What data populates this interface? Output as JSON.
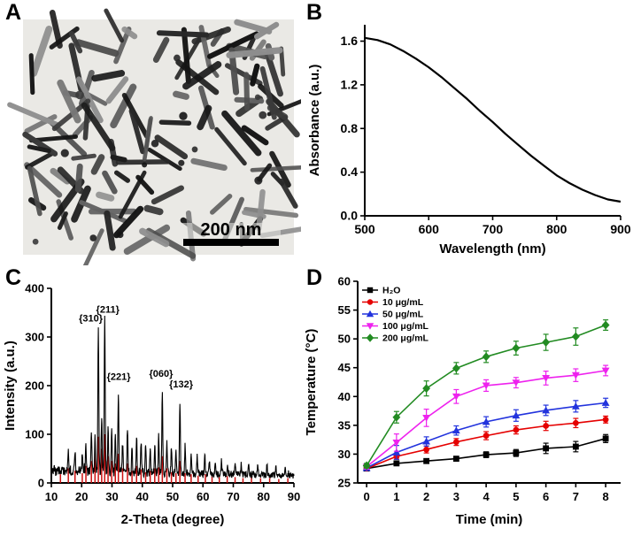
{
  "panels": {
    "A": {
      "label": "A",
      "scale_bar": "200 nm"
    },
    "B": {
      "label": "B"
    },
    "C": {
      "label": "C"
    },
    "D": {
      "label": "D"
    }
  },
  "tem": {
    "background": "#eae9e5",
    "rod_count": 120,
    "dot_count": 14,
    "rod_palette": [
      "#141414",
      "#1d1d1d",
      "#292929",
      "#3a3a3a",
      "#4e4e4e",
      "#626262",
      "#787878",
      "#8e8e8e"
    ],
    "scale_bar_color": "#000000"
  },
  "chart_data": [
    {
      "id": "absorbance",
      "type": "line",
      "title": "",
      "xlabel": "Wavelength (nm)",
      "ylabel": "Absorbance (a.u.)",
      "xlim": [
        500,
        900
      ],
      "ylim": [
        0,
        1.75
      ],
      "xticks": [
        500,
        600,
        700,
        800,
        900
      ],
      "yticks": [
        0.0,
        0.4,
        0.8,
        1.2,
        1.6
      ],
      "yticklabels": [
        "0.0",
        "0.4",
        "0.8",
        "1.2",
        "1.6"
      ],
      "color": "#000000",
      "x": [
        500,
        520,
        540,
        560,
        580,
        600,
        620,
        640,
        660,
        680,
        700,
        720,
        740,
        760,
        780,
        800,
        820,
        840,
        860,
        880,
        900
      ],
      "y": [
        1.63,
        1.61,
        1.57,
        1.51,
        1.44,
        1.36,
        1.27,
        1.17,
        1.07,
        0.96,
        0.86,
        0.75,
        0.65,
        0.55,
        0.46,
        0.37,
        0.3,
        0.24,
        0.19,
        0.15,
        0.13
      ]
    },
    {
      "id": "xrd",
      "type": "line",
      "title": "",
      "xlabel": "2-Theta (degree)",
      "ylabel": "Intensity (a.u.)",
      "xlim": [
        10,
        90
      ],
      "ylim": [
        0,
        400
      ],
      "xticks": [
        10,
        20,
        30,
        40,
        50,
        60,
        70,
        80,
        90
      ],
      "yticks": [
        0,
        100,
        200,
        300,
        400
      ],
      "trace_color": "#000000",
      "stick_color": "#cc1111",
      "noise": {
        "baseline_start": 26,
        "baseline_end": 15,
        "amp_start": 11,
        "amp_end": 6
      },
      "peaks": [
        [
          15.6,
          35,
          0.2
        ],
        [
          17.8,
          45,
          0.2
        ],
        [
          20.2,
          40,
          0.2
        ],
        [
          21.4,
          55,
          0.2
        ],
        [
          23.2,
          85,
          0.2
        ],
        [
          24.4,
          75,
          0.2
        ],
        [
          25.5,
          300,
          0.22
        ],
        [
          26.6,
          115,
          0.2
        ],
        [
          27.6,
          320,
          0.22
        ],
        [
          28.7,
          95,
          0.2
        ],
        [
          29.9,
          85,
          0.2
        ],
        [
          31.1,
          70,
          0.2
        ],
        [
          32.1,
          160,
          0.22
        ],
        [
          33.5,
          60,
          0.2
        ],
        [
          35.1,
          85,
          0.2
        ],
        [
          36.6,
          55,
          0.2
        ],
        [
          38.1,
          75,
          0.2
        ],
        [
          39.6,
          65,
          0.2
        ],
        [
          41.1,
          55,
          0.2
        ],
        [
          42.6,
          50,
          0.2
        ],
        [
          44.1,
          60,
          0.2
        ],
        [
          45.4,
          75,
          0.2
        ],
        [
          46.6,
          165,
          0.22
        ],
        [
          48.1,
          60,
          0.2
        ],
        [
          49.6,
          55,
          0.2
        ],
        [
          51.1,
          50,
          0.2
        ],
        [
          52.4,
          145,
          0.22
        ],
        [
          54.1,
          55,
          0.2
        ],
        [
          56.1,
          40,
          0.2
        ],
        [
          58.1,
          35,
          0.2
        ],
        [
          60.6,
          40,
          0.2
        ],
        [
          62.1,
          30,
          0.2
        ],
        [
          64.1,
          28,
          0.2
        ],
        [
          66.1,
          32,
          0.2
        ],
        [
          68.1,
          26,
          0.2
        ],
        [
          70.6,
          30,
          0.2
        ],
        [
          72.6,
          22,
          0.2
        ],
        [
          75.1,
          26,
          0.2
        ],
        [
          78.1,
          22,
          0.2
        ],
        [
          81.1,
          20,
          0.2
        ],
        [
          84.1,
          18,
          0.2
        ],
        [
          87.1,
          20,
          0.2
        ]
      ],
      "ref_sticks": [
        [
          13.0,
          18
        ],
        [
          15.6,
          30
        ],
        [
          17.8,
          25
        ],
        [
          20.2,
          20
        ],
        [
          21.4,
          35
        ],
        [
          23.2,
          45
        ],
        [
          24.4,
          60
        ],
        [
          25.5,
          95
        ],
        [
          26.6,
          70
        ],
        [
          27.6,
          100
        ],
        [
          28.7,
          55
        ],
        [
          29.9,
          45
        ],
        [
          31.1,
          40
        ],
        [
          32.1,
          60
        ],
        [
          33.5,
          30
        ],
        [
          35.1,
          40
        ],
        [
          36.6,
          25
        ],
        [
          38.1,
          35
        ],
        [
          39.6,
          28
        ],
        [
          41.1,
          22
        ],
        [
          42.6,
          25
        ],
        [
          44.1,
          30
        ],
        [
          45.4,
          32
        ],
        [
          46.6,
          55
        ],
        [
          48.1,
          30
        ],
        [
          49.6,
          22
        ],
        [
          51.1,
          20
        ],
        [
          52.4,
          45
        ],
        [
          54.1,
          20
        ],
        [
          56.1,
          18
        ],
        [
          58.4,
          15
        ],
        [
          60.8,
          18
        ],
        [
          63.0,
          14
        ],
        [
          65.4,
          12
        ],
        [
          68.0,
          14
        ],
        [
          70.6,
          12
        ],
        [
          73.2,
          10
        ],
        [
          76.0,
          12
        ],
        [
          79.0,
          10
        ],
        [
          82.0,
          10
        ],
        [
          85.0,
          8
        ],
        [
          88.0,
          10
        ]
      ],
      "annotations": [
        {
          "text": "{310}",
          "x": 23.0,
          "y": 332
        },
        {
          "text": "{211}",
          "x": 28.6,
          "y": 350
        },
        {
          "text": "{221}",
          "x": 32.2,
          "y": 212
        },
        {
          "text": "{060}",
          "x": 46.2,
          "y": 218
        },
        {
          "text": "{132}",
          "x": 52.8,
          "y": 196
        }
      ]
    },
    {
      "id": "heating",
      "type": "line",
      "title": "",
      "xlabel": "Time (min)",
      "ylabel": "Temperature (°C)",
      "xlim": [
        -0.3,
        8.5
      ],
      "ylim": [
        25,
        60
      ],
      "xticks": [
        0,
        1,
        2,
        3,
        4,
        5,
        6,
        7,
        8
      ],
      "yticks": [
        25,
        30,
        35,
        40,
        45,
        50,
        55,
        60
      ],
      "legend_position": "top-left",
      "x": [
        0,
        1,
        2,
        3,
        4,
        5,
        6,
        7,
        8
      ],
      "series": [
        {
          "name": "H2O",
          "display": "H₂O",
          "color": "#000000",
          "marker": "square",
          "values": [
            27.5,
            28.4,
            28.8,
            29.2,
            29.9,
            30.2,
            31.0,
            31.3,
            32.7
          ],
          "err": [
            0.3,
            0.4,
            0.4,
            0.4,
            0.5,
            0.6,
            0.9,
            0.9,
            0.7
          ]
        },
        {
          "name": "10 ug/mL",
          "display": "10 μg/mL",
          "color": "#e50000",
          "marker": "circle",
          "values": [
            27.5,
            29.6,
            30.8,
            32.1,
            33.2,
            34.2,
            34.9,
            35.4,
            36.0
          ],
          "err": [
            0.3,
            0.5,
            0.6,
            0.6,
            0.7,
            0.7,
            0.8,
            0.8,
            0.6
          ]
        },
        {
          "name": "50 ug/mL",
          "display": "50 μg/mL",
          "color": "#2233dd",
          "marker": "triangle-up",
          "values": [
            27.6,
            30.3,
            32.2,
            34.1,
            35.6,
            36.7,
            37.6,
            38.3,
            38.9
          ],
          "err": [
            0.3,
            1.2,
            0.8,
            0.8,
            0.9,
            1.0,
            0.9,
            1.0,
            0.8
          ]
        },
        {
          "name": "100 ug/mL",
          "display": "100 μg/mL",
          "color": "#ee22ee",
          "marker": "triangle-down",
          "values": [
            27.8,
            32.0,
            36.3,
            40.0,
            41.9,
            42.4,
            43.2,
            43.7,
            44.5
          ],
          "err": [
            0.4,
            1.5,
            1.5,
            1.2,
            1.0,
            0.9,
            1.2,
            1.1,
            0.9
          ]
        },
        {
          "name": "200 ug/mL",
          "display": "200 μg/mL",
          "color": "#228b22",
          "marker": "diamond",
          "values": [
            28.0,
            36.4,
            41.4,
            44.9,
            46.9,
            48.4,
            49.4,
            50.4,
            52.4
          ],
          "err": [
            0.4,
            1.0,
            1.3,
            1.0,
            1.0,
            1.2,
            1.4,
            1.5,
            0.9
          ]
        }
      ]
    }
  ]
}
